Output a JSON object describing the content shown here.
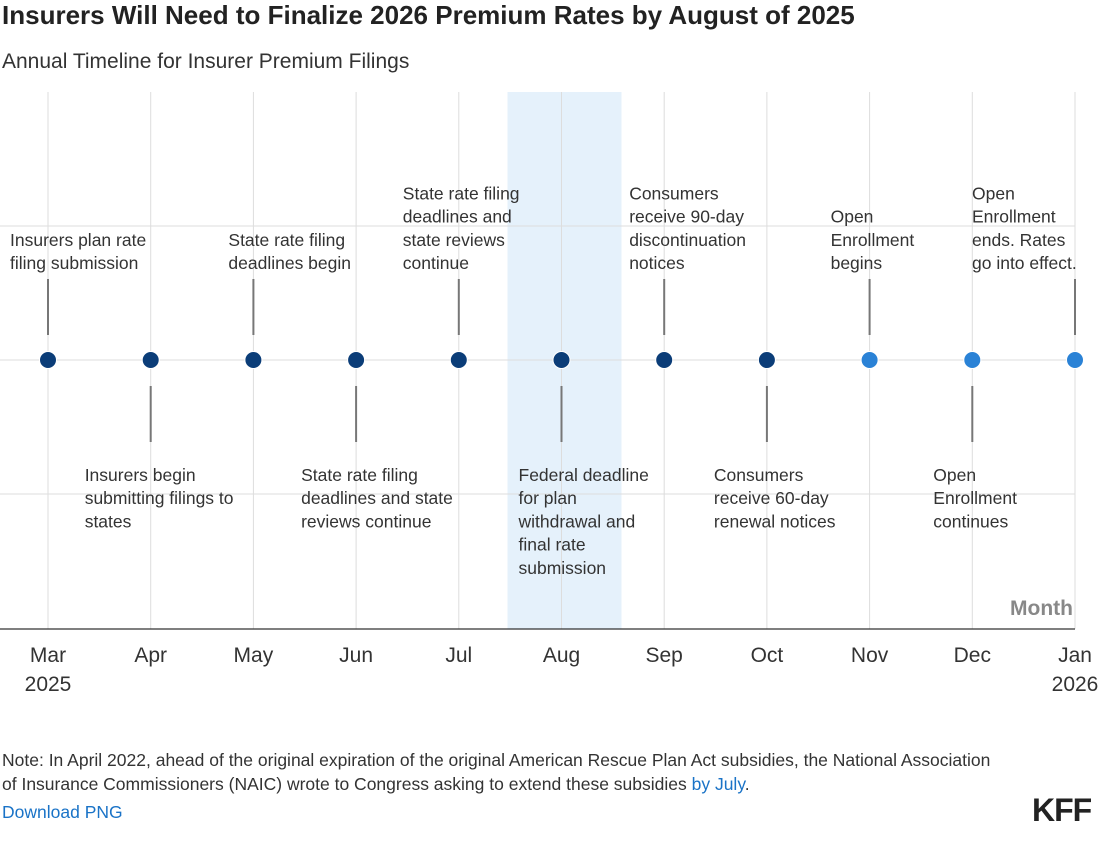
{
  "title": "Insurers Will Need to Finalize 2026 Premium Rates by August of 2025",
  "subtitle": "Annual Timeline for Insurer Premium Filings",
  "note": {
    "text": "Note: In April 2022, ahead of the original expiration of the original American Rescue Plan Act subsidies, the National Association of Insurance Commissioners (NAIC) wrote to Congress asking to extend these subsidies ",
    "link_text": "by July",
    "end": "."
  },
  "download_label": "Download PNG",
  "logo": "KFF",
  "chart_data": {
    "type": "timeline",
    "xlabel": "Month",
    "highlight_month": "Aug",
    "colors": {
      "past": "#0b3d78",
      "future": "#2a82d6",
      "highlight": "#e5f1fb",
      "stem": "#777777",
      "grid": "#dddddd"
    },
    "months": [
      {
        "label": "Mar",
        "year": "2025",
        "status": "past"
      },
      {
        "label": "Apr",
        "year": "",
        "status": "past"
      },
      {
        "label": "May",
        "year": "",
        "status": "past"
      },
      {
        "label": "Jun",
        "year": "",
        "status": "past"
      },
      {
        "label": "Jul",
        "year": "",
        "status": "past"
      },
      {
        "label": "Aug",
        "year": "",
        "status": "past"
      },
      {
        "label": "Sep",
        "year": "",
        "status": "past"
      },
      {
        "label": "Oct",
        "year": "",
        "status": "past"
      },
      {
        "label": "Nov",
        "year": "",
        "status": "future"
      },
      {
        "label": "Dec",
        "year": "",
        "status": "future"
      },
      {
        "label": "Jan",
        "year": "2026",
        "status": "future"
      }
    ],
    "events": [
      {
        "month": "Mar",
        "side": "above",
        "lines": [
          "Insurers plan rate",
          "filing submission"
        ]
      },
      {
        "month": "Apr",
        "side": "below",
        "lines": [
          "Insurers begin",
          "submitting filings to",
          "states"
        ]
      },
      {
        "month": "May",
        "side": "above",
        "lines": [
          "State rate filing",
          "deadlines begin"
        ]
      },
      {
        "month": "Jun",
        "side": "below",
        "lines": [
          "State rate filing",
          "deadlines and state",
          "reviews continue"
        ]
      },
      {
        "month": "Jul",
        "side": "above",
        "lines": [
          "State rate filing",
          "deadlines and",
          "state reviews",
          "continue"
        ]
      },
      {
        "month": "Aug",
        "side": "below",
        "lines": [
          "Federal deadline",
          "for plan",
          "withdrawal and",
          "final rate",
          "submission"
        ]
      },
      {
        "month": "Sep",
        "side": "above",
        "lines": [
          "Consumers",
          "receive 90-day",
          "discontinuation",
          "notices"
        ]
      },
      {
        "month": "Oct",
        "side": "below",
        "lines": [
          "Consumers",
          "receive 60-day",
          "renewal notices"
        ]
      },
      {
        "month": "Nov",
        "side": "above",
        "lines": [
          "Open",
          "Enrollment",
          "begins"
        ]
      },
      {
        "month": "Dec",
        "side": "below",
        "lines": [
          "Open",
          "Enrollment",
          "continues"
        ]
      },
      {
        "month": "Jan",
        "side": "above",
        "lines": [
          "Open",
          "Enrollment",
          "ends. Rates",
          "go into effect."
        ]
      }
    ]
  }
}
